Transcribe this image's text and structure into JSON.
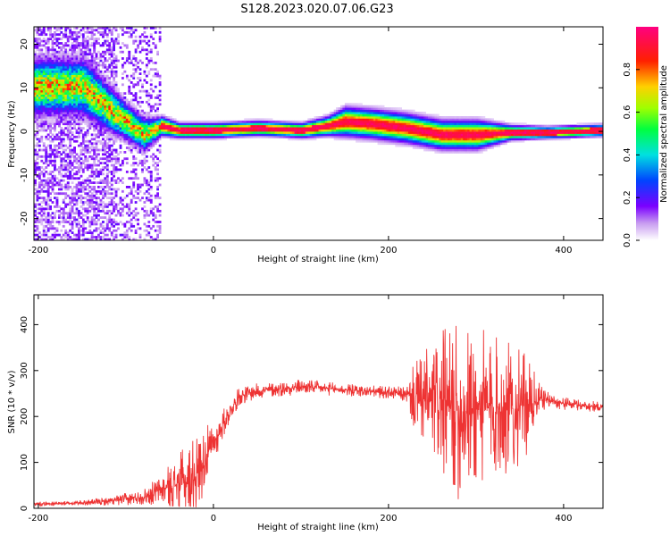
{
  "title": "S128.2023.020.07.06.G23",
  "chart_data": [
    {
      "type": "heatmap",
      "title": "",
      "xlabel": "Height of straight line (km)",
      "ylabel": "Frequency (Hz)",
      "xlim": [
        -205,
        445
      ],
      "ylim": [
        -25,
        24
      ],
      "xticks": [
        -200,
        0,
        200,
        400
      ],
      "yticks": [
        -20,
        -10,
        0,
        10,
        20
      ],
      "colorbar": {
        "label": "Normalized spectral amplitude",
        "range": [
          0.0,
          1.0
        ],
        "ticks": [
          "0.0",
          "0.2",
          "0.4",
          "0.6",
          "0.8"
        ],
        "colormap": "white-purple-blue-cyan-green-yellow-red-magenta"
      },
      "ridge": {
        "x": [
          -150,
          -120,
          -100,
          -80,
          -60,
          -40,
          0,
          50,
          100,
          130,
          150,
          180,
          220,
          260,
          300,
          340,
          380,
          440
        ],
        "frequency_hz": [
          10,
          5,
          2,
          -1,
          1,
          0,
          0,
          0.5,
          0,
          1,
          2,
          1.5,
          0.5,
          -1,
          -1,
          -0.5,
          -0.5,
          0
        ],
        "width_hz": [
          6,
          5,
          4,
          3.5,
          2,
          1.5,
          1.5,
          1.5,
          1.5,
          2,
          3,
          3,
          3,
          3,
          3,
          1.5,
          1.2,
          1.2
        ]
      }
    },
    {
      "type": "line",
      "title": "",
      "xlabel": "Height of straight line (km)",
      "ylabel": "SNR (10 * v/v)",
      "xlim": [
        -205,
        445
      ],
      "ylim": [
        0,
        465
      ],
      "xticks": [
        -200,
        0,
        200,
        400
      ],
      "yticks": [
        0,
        100,
        200,
        300,
        400
      ],
      "color": "#ee3333",
      "series": [
        {
          "x": [
            -205,
            -180,
            -150,
            -120,
            -100,
            -80,
            -60,
            -40,
            -30,
            -20,
            -10,
            0,
            10,
            20,
            30,
            50,
            100,
            150,
            200,
            220,
            230,
            260,
            280,
            300,
            320,
            340,
            360,
            370,
            380,
            400,
            445
          ],
          "mean": [
            10,
            10,
            12,
            15,
            20,
            25,
            40,
            55,
            60,
            70,
            110,
            140,
            180,
            215,
            245,
            255,
            265,
            258,
            252,
            248,
            240,
            225,
            210,
            215,
            220,
            215,
            225,
            235,
            238,
            228,
            220
          ],
          "noise_amplitude": [
            4,
            4,
            5,
            8,
            12,
            15,
            30,
            55,
            70,
            80,
            60,
            40,
            30,
            20,
            18,
            15,
            15,
            12,
            12,
            15,
            70,
            140,
            170,
            160,
            140,
            130,
            90,
            40,
            15,
            12,
            10
          ]
        }
      ]
    }
  ]
}
